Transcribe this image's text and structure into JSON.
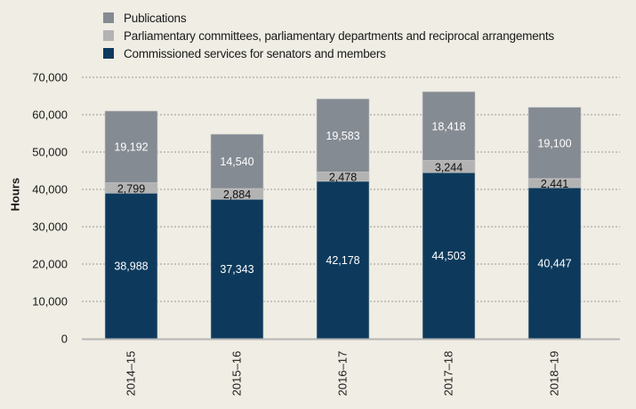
{
  "chart_data": {
    "type": "bar",
    "stacked": true,
    "title": "",
    "xlabel": "",
    "ylabel": "Hours",
    "ylim": [
      0,
      70000
    ],
    "yticks": [
      0,
      10000,
      20000,
      30000,
      40000,
      50000,
      60000,
      70000
    ],
    "ytick_labels": [
      "0",
      "10,000",
      "20,000",
      "30,000",
      "40,000",
      "50,000",
      "60,000",
      "70,000"
    ],
    "grid": "horizontal dotted",
    "legend_position": "top-left",
    "categories": [
      "2014–15",
      "2015–16",
      "2016–17",
      "2017–18",
      "2018–19"
    ],
    "series": [
      {
        "name": "Commissioned services for senators and members",
        "color": "#0d3a5c",
        "label_color": "#ffffff",
        "values": [
          38988,
          37343,
          42178,
          44503,
          40447
        ],
        "labels": [
          "38,988",
          "37,343",
          "42,178",
          "44,503",
          "40,447"
        ]
      },
      {
        "name": "Parliamentary committees, parliamentary departments and reciprocal arrangements",
        "color": "#b3b3b3",
        "label_color": "#111111",
        "values": [
          2799,
          2884,
          2478,
          3244,
          2441
        ],
        "labels": [
          "2,799",
          "2,884",
          "2,478",
          "3,244",
          "2,441"
        ]
      },
      {
        "name": "Publications",
        "color": "#858b93",
        "label_color": "#ffffff",
        "values": [
          19192,
          14540,
          19583,
          18418,
          19100
        ],
        "labels": [
          "19,192",
          "14,540",
          "19,583",
          "18,418",
          "19,100"
        ]
      }
    ],
    "legend_order": [
      2,
      1,
      0
    ]
  }
}
